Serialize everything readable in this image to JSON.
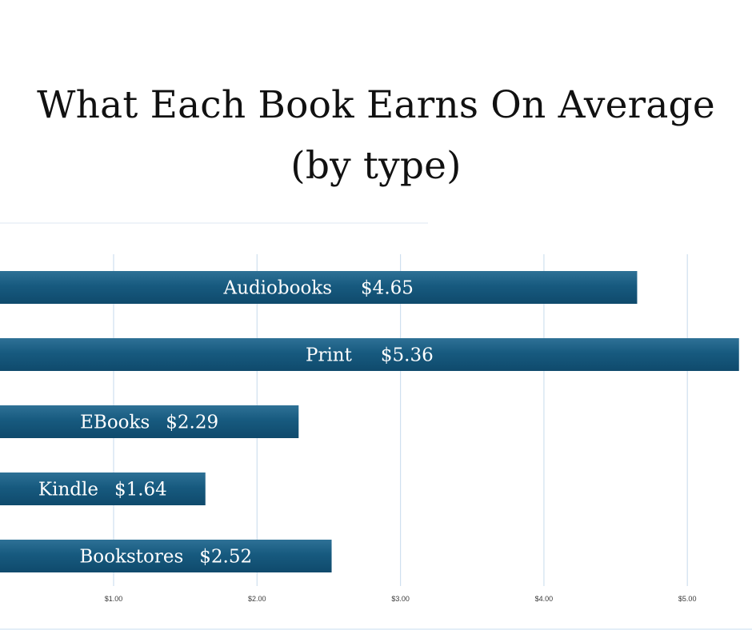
{
  "title_line1": "What Each Book Earns On Average",
  "title_line2": "(by type)",
  "chart_data": {
    "type": "bar",
    "orientation": "horizontal",
    "title": "What Each Book Earns On Average (by type)",
    "categories": [
      "Audiobooks",
      "Print",
      "EBooks",
      "Kindle",
      "Bookstores"
    ],
    "values": [
      4.65,
      5.36,
      2.29,
      1.64,
      2.52
    ],
    "value_labels": [
      "$4.65",
      "$5.36",
      "$2.29",
      "$1.64",
      "$2.52"
    ],
    "x_ticks": [
      1,
      2,
      3,
      4,
      5
    ],
    "x_tick_labels": [
      "$1.00",
      "$2.00",
      "$3.00",
      "$4.00",
      "$5.00"
    ],
    "xlim": [
      0.2,
      5.4
    ],
    "grid": true,
    "legend": "none",
    "bar_color": "#175a7f",
    "grid_color": "#cfe0ef"
  }
}
